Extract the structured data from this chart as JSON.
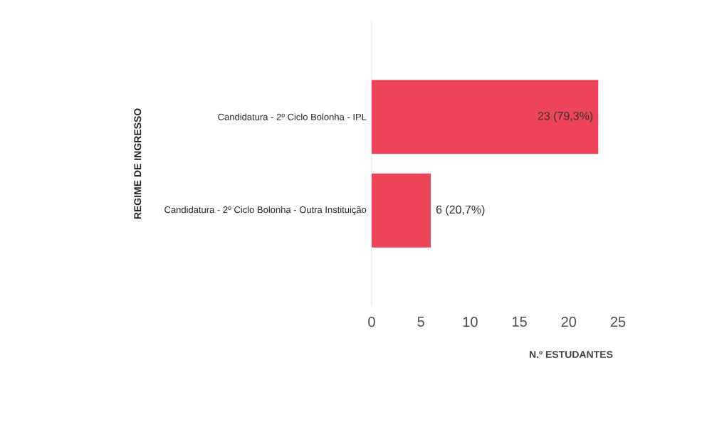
{
  "chart_data": {
    "type": "bar",
    "orientation": "horizontal",
    "xlabel": "N.º ESTUDANTES",
    "ylabel": "REGIME DE INGRESSO",
    "categories": [
      "Candidatura - 2º Ciclo Bolonha - IPL",
      "Candidatura - 2º Ciclo Bolonha - Outra Instituição"
    ],
    "values": [
      23,
      6
    ],
    "color": "#ef4458",
    "value_labels": [
      "23 (79,3%)",
      "6 (20,7%)"
    ],
    "xlim": [
      0,
      25
    ],
    "xticks": [
      0,
      5,
      10,
      15,
      20,
      25
    ]
  }
}
